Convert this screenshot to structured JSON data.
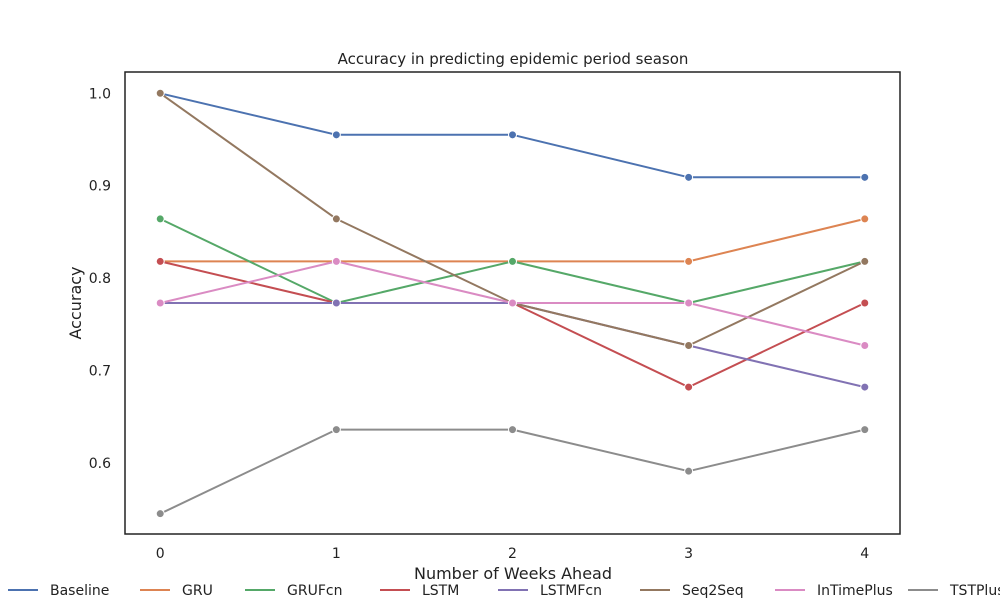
{
  "chart_data": {
    "type": "line",
    "title": "Accuracy in predicting epidemic period season",
    "xlabel": "Number of Weeks Ahead",
    "ylabel": "Accuracy",
    "x": [
      0,
      1,
      2,
      3,
      4
    ],
    "x_tick_labels": [
      "0",
      "1",
      "2",
      "3",
      "4"
    ],
    "y_ticks": [
      0.6,
      0.7,
      0.8,
      0.9,
      1.0
    ],
    "y_tick_labels": [
      "0.6",
      "0.7",
      "0.8",
      "0.9",
      "1.0"
    ],
    "xlim": [
      -0.2,
      4.2
    ],
    "ylim": [
      0.523,
      1.023
    ],
    "grid": false,
    "legend_position": "bottom",
    "series": [
      {
        "name": "Baseline",
        "color": "#4c72b0",
        "values": [
          1.0,
          0.955,
          0.955,
          0.909,
          0.909
        ]
      },
      {
        "name": "GRU",
        "color": "#dd8452",
        "values": [
          0.818,
          0.818,
          0.818,
          0.818,
          0.864
        ]
      },
      {
        "name": "GRUFcn",
        "color": "#55a868",
        "values": [
          0.864,
          0.773,
          0.818,
          0.773,
          0.818
        ]
      },
      {
        "name": "LSTM",
        "color": "#c44e52",
        "values": [
          0.818,
          0.773,
          0.773,
          0.682,
          0.773
        ]
      },
      {
        "name": "LSTMFcn",
        "color": "#8172b3",
        "values": [
          0.773,
          0.773,
          0.773,
          0.727,
          0.682
        ]
      },
      {
        "name": "Seq2Seq",
        "color": "#937860",
        "values": [
          1.0,
          0.864,
          0.773,
          0.727,
          0.818
        ]
      },
      {
        "name": "InTimePlus",
        "color": "#da8bc3",
        "values": [
          0.773,
          0.818,
          0.773,
          0.773,
          0.727
        ]
      },
      {
        "name": "TSTPlus",
        "color": "#8c8c8c",
        "values": [
          0.545,
          0.636,
          0.636,
          0.591,
          0.636
        ]
      }
    ]
  }
}
